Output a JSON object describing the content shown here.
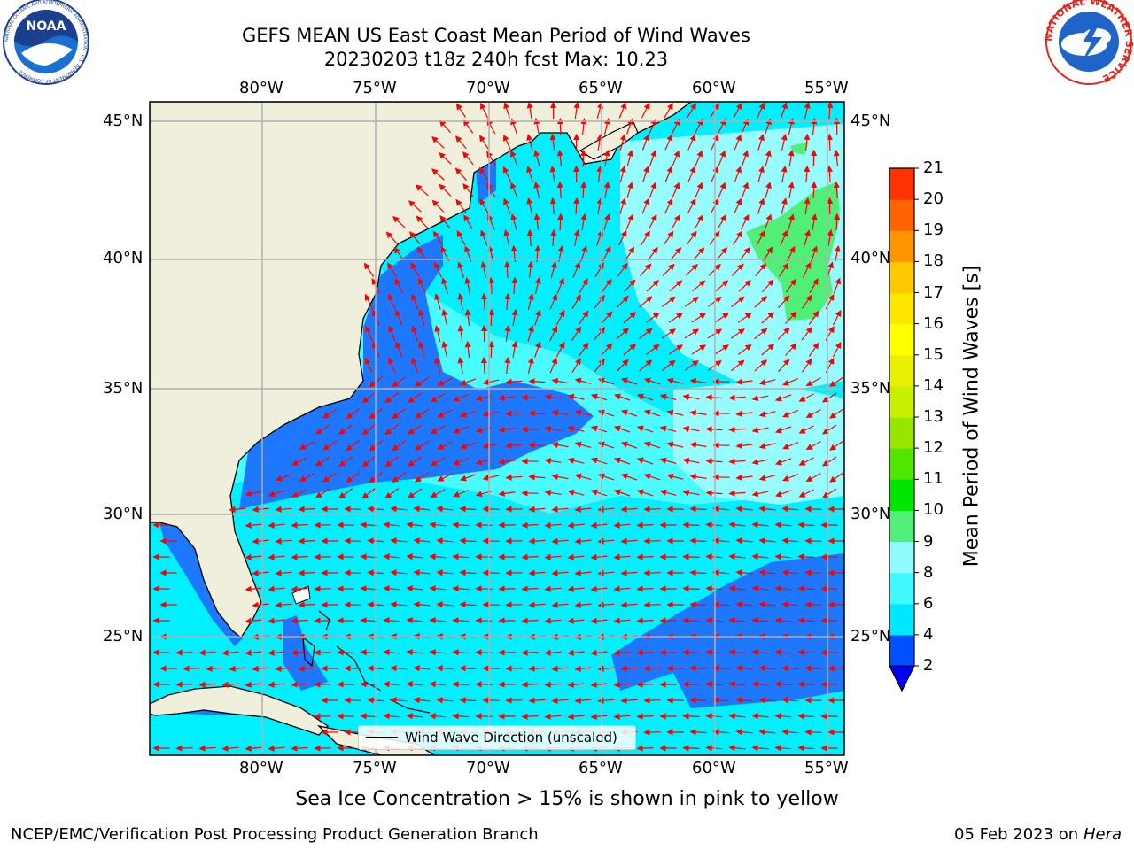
{
  "header": {
    "title_line1": "GEFS MEAN US East Coast Mean Period of Wind Waves",
    "title_line2": "20230203 t18z 240h fcst   Max: 10.23"
  },
  "logos": {
    "noaa_text": "NOAA",
    "noaa_ring_text": "NATIONAL OCEANIC AND ATMOSPHERIC ADMINISTRATION · U.S. DEPARTMENT OF COMMERCE",
    "nws_ring_text": "NATIONAL WEATHER SERVICE"
  },
  "map": {
    "lon_labels": [
      "80°W",
      "75°W",
      "70°W",
      "65°W",
      "60°W",
      "55°W"
    ],
    "lat_labels": [
      "45°N",
      "40°N",
      "35°N",
      "30°N",
      "25°N"
    ],
    "legend_label": "Wind Wave Direction (unscaled)",
    "colors": {
      "land": "#efefdc",
      "band_2_4": "#1e78ff",
      "band_4_6": "#00f0ff",
      "band_6_8": "#48fcff",
      "band_8_9": "#96fcff",
      "band_9_10": "#50f078",
      "arrow": "#ff0000",
      "grid": "#b0b0b0"
    }
  },
  "colorbar": {
    "title": "Mean Period of Wind Waves [s]",
    "ticks": [
      "2",
      "4",
      "6",
      "8",
      "9",
      "10",
      "11",
      "12",
      "13",
      "14",
      "15",
      "16",
      "17",
      "18",
      "19",
      "20",
      "21"
    ],
    "colors": [
      "#0050ff",
      "#00e8ff",
      "#40f8ff",
      "#90fcff",
      "#50f07a",
      "#00e600",
      "#50e600",
      "#98e600",
      "#c8f000",
      "#e6f000",
      "#ffff00",
      "#ffe600",
      "#ffc800",
      "#ff9600",
      "#ff6400",
      "#ff3200",
      "#ff0000"
    ]
  },
  "footer": {
    "caption": "Sea Ice Concentration > 15% is shown in pink to yellow",
    "credit": "NCEP/EMC/Verification Post Processing Product Generation Branch",
    "date": "05 Feb 2023 on",
    "machine": "Hera"
  }
}
